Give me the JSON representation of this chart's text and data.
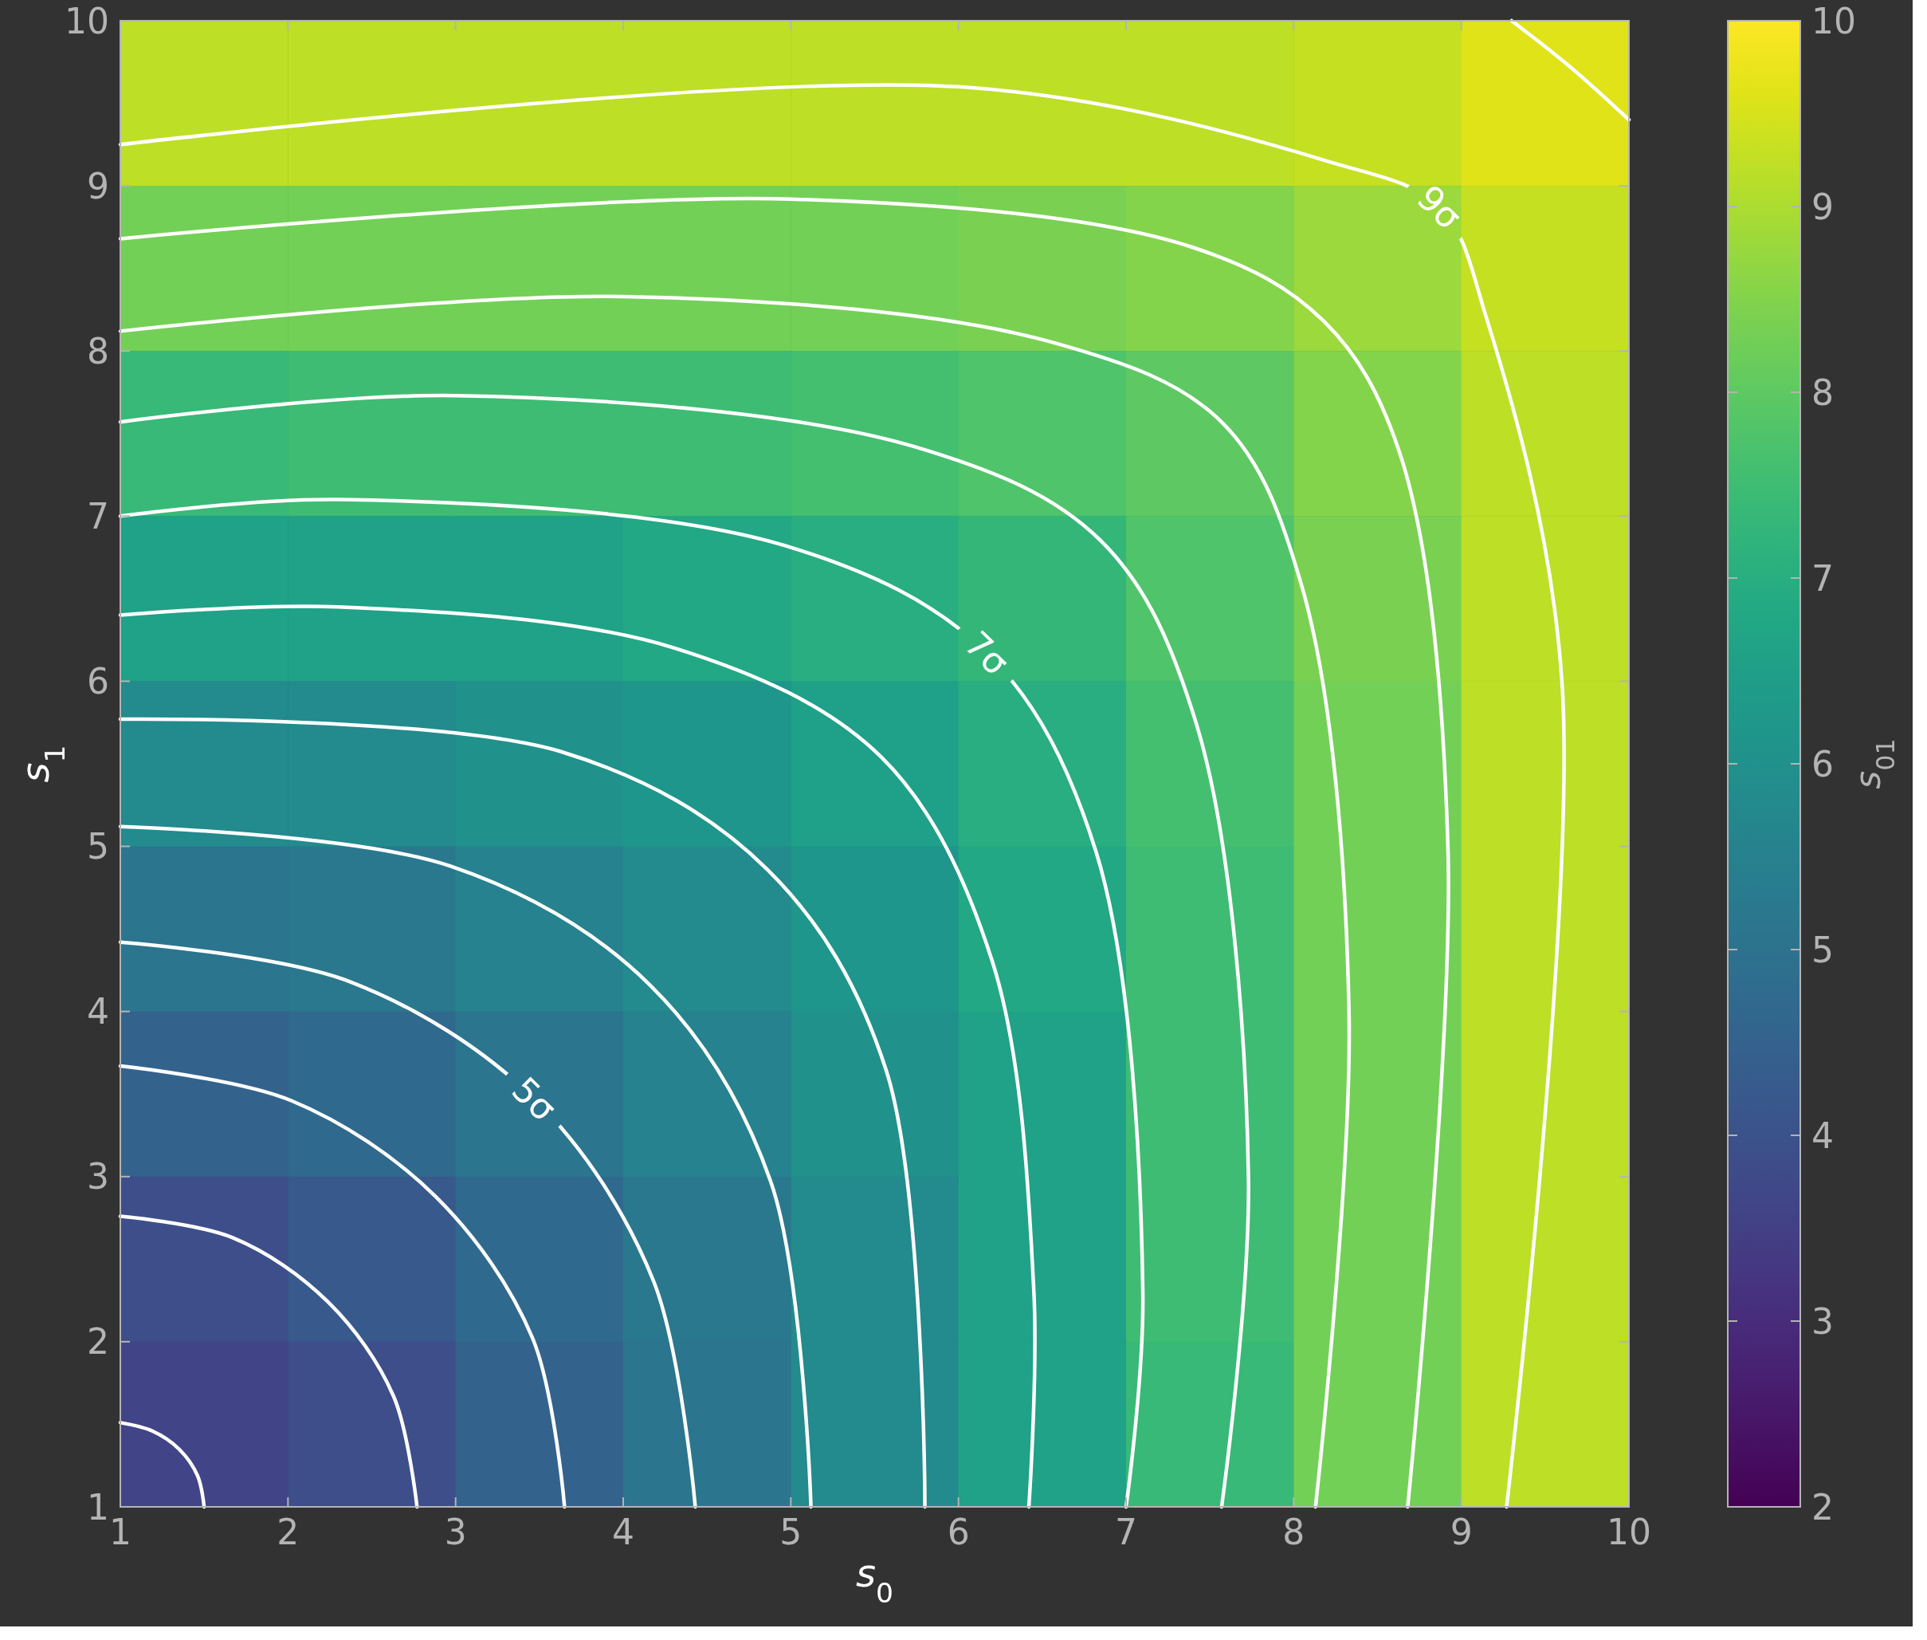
{
  "chart_data": {
    "type": "heatmap",
    "xlabel": "s$_{0}$",
    "ylabel": "s$_{1}$",
    "clabel": "s$_{01}$",
    "xlim": [
      1,
      10
    ],
    "ylim": [
      1,
      10
    ],
    "xticks": [
      1,
      2,
      3,
      4,
      5,
      6,
      7,
      8,
      9,
      10
    ],
    "yticks": [
      1,
      2,
      3,
      4,
      5,
      6,
      7,
      8,
      9,
      10
    ],
    "clim": [
      2,
      10
    ],
    "cticks": [
      2,
      3,
      4,
      5,
      6,
      7,
      8,
      9,
      10
    ],
    "cells": [
      [
        9.2,
        9.2,
        9.2,
        9.2,
        9.2,
        9.2,
        9.2,
        9.3,
        9.6
      ],
      [
        8.3,
        8.3,
        8.3,
        8.3,
        8.3,
        8.4,
        8.5,
        8.8,
        9.3
      ],
      [
        7.4,
        7.5,
        7.5,
        7.5,
        7.6,
        7.8,
        8.0,
        8.5,
        9.2
      ],
      [
        6.6,
        6.6,
        6.6,
        6.8,
        7.0,
        7.3,
        7.8,
        8.4,
        9.2
      ],
      [
        5.8,
        5.8,
        6.0,
        6.2,
        6.5,
        7.0,
        7.6,
        8.3,
        9.2
      ],
      [
        5.1,
        5.2,
        5.5,
        5.8,
        6.2,
        6.8,
        7.5,
        8.3,
        9.2
      ],
      [
        4.5,
        4.7,
        5.1,
        5.5,
        6.0,
        6.6,
        7.5,
        8.3,
        9.2
      ],
      [
        3.9,
        4.2,
        4.7,
        5.2,
        5.8,
        6.6,
        7.5,
        8.3,
        9.2
      ],
      [
        3.6,
        3.9,
        4.5,
        5.1,
        5.8,
        6.6,
        7.4,
        8.3,
        9.2
      ]
    ],
    "series": [
      {
        "type": "line",
        "color": "#ffffff",
        "x": [
          1,
          1.19,
          1.35,
          1.46,
          1.5
        ],
        "values": [
          1.51,
          1.46,
          1.35,
          1.19,
          1
        ]
      },
      {
        "type": "line",
        "color": "#ffffff",
        "x": [
          1,
          1.67,
          2.24,
          2.63,
          2.77
        ],
        "values": [
          2.76,
          2.63,
          2.24,
          1.67,
          1
        ]
      },
      {
        "type": "line",
        "color": "#ffffff",
        "x": [
          1,
          2.02,
          2.88,
          3.46,
          3.65
        ],
        "values": [
          3.67,
          3.46,
          2.88,
          2.02,
          1
        ]
      },
      {
        "type": "line",
        "name": "5σ",
        "color": "#ffffff",
        "x": [
          1,
          2.37,
          3.47,
          4.18,
          4.43
        ],
        "values": [
          4.42,
          4.18,
          3.47,
          2.37,
          1
        ]
      },
      {
        "type": "line",
        "color": "#ffffff",
        "x": [
          1,
          2.97,
          4.16,
          4.88,
          5.12
        ],
        "values": [
          5.12,
          4.88,
          4.16,
          2.97,
          1
        ]
      },
      {
        "type": "line",
        "color": "#ffffff",
        "x": [
          1,
          3.64,
          4.86,
          5.57,
          5.8
        ],
        "values": [
          5.77,
          5.57,
          4.86,
          3.64,
          1
        ]
      },
      {
        "type": "line",
        "color": "#ffffff",
        "x": [
          1,
          2.3,
          4.31,
          5.54,
          6.2,
          6.45,
          6.42
        ],
        "values": [
          6.4,
          6.45,
          6.2,
          5.54,
          4.31,
          2.3,
          1
        ]
      },
      {
        "type": "line",
        "name": "7σ",
        "color": "#ffffff",
        "x": [
          1,
          2.3,
          4.97,
          6.17,
          6.82,
          7.1,
          7.0
        ],
        "values": [
          7.0,
          7.1,
          6.82,
          6.17,
          4.97,
          2.3,
          1
        ]
      },
      {
        "type": "line",
        "color": "#ffffff",
        "x": [
          1,
          3,
          5.74,
          6.85,
          7.42,
          7.73,
          7.57
        ],
        "values": [
          7.57,
          7.73,
          7.42,
          6.85,
          5.74,
          3,
          1
        ]
      },
      {
        "type": "line",
        "color": "#ffffff",
        "x": [
          1,
          4,
          6.57,
          7.57,
          8.05,
          8.33,
          8.13
        ],
        "values": [
          8.12,
          8.33,
          8.05,
          7.57,
          6.57,
          4,
          1
        ]
      },
      {
        "type": "line",
        "color": "#ffffff",
        "x": [
          1,
          5,
          7.39,
          8.18,
          8.63,
          8.92,
          8.68
        ],
        "values": [
          8.68,
          8.92,
          8.63,
          8.18,
          7.39,
          5,
          1
        ]
      },
      {
        "type": "line",
        "name": "9σ",
        "color": "#ffffff",
        "x": [
          1,
          6,
          8.2,
          8.87,
          9.15,
          9.6,
          9.27
        ],
        "values": [
          9.25,
          9.6,
          9.15,
          8.87,
          8.2,
          6,
          1
        ]
      },
      {
        "type": "line",
        "color": "#ffffff",
        "x": [
          9.3,
          9.65,
          10
        ],
        "values": [
          10,
          9.72,
          9.4
        ]
      }
    ]
  }
}
